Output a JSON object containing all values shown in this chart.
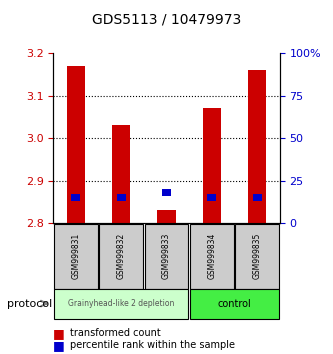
{
  "title": "GDS5113 / 10479973",
  "samples": [
    "GSM999831",
    "GSM999832",
    "GSM999833",
    "GSM999834",
    "GSM999835"
  ],
  "bar_base": 2.8,
  "red_values": [
    3.17,
    3.03,
    2.83,
    3.07,
    3.16
  ],
  "blue_values_pct": [
    15,
    15,
    18,
    15,
    15
  ],
  "ylim_left": [
    2.8,
    3.2
  ],
  "ylim_right": [
    0,
    100
  ],
  "yticks_left": [
    2.8,
    2.9,
    3.0,
    3.1,
    3.2
  ],
  "yticks_right": [
    0,
    25,
    50,
    75,
    100
  ],
  "ytick_labels_right": [
    "0",
    "25",
    "50",
    "75",
    "100%"
  ],
  "red_color": "#cc0000",
  "blue_color": "#0000cc",
  "group1_label": "Grainyhead-like 2 depletion",
  "group2_label": "control",
  "group1_color": "#ccffcc",
  "group2_color": "#44ee44",
  "protocol_label": "protocol",
  "legend1": "transformed count",
  "legend2": "percentile rank within the sample",
  "background_color": "#ffffff",
  "tick_label_color_left": "#cc0000",
  "tick_label_color_right": "#0000cc"
}
